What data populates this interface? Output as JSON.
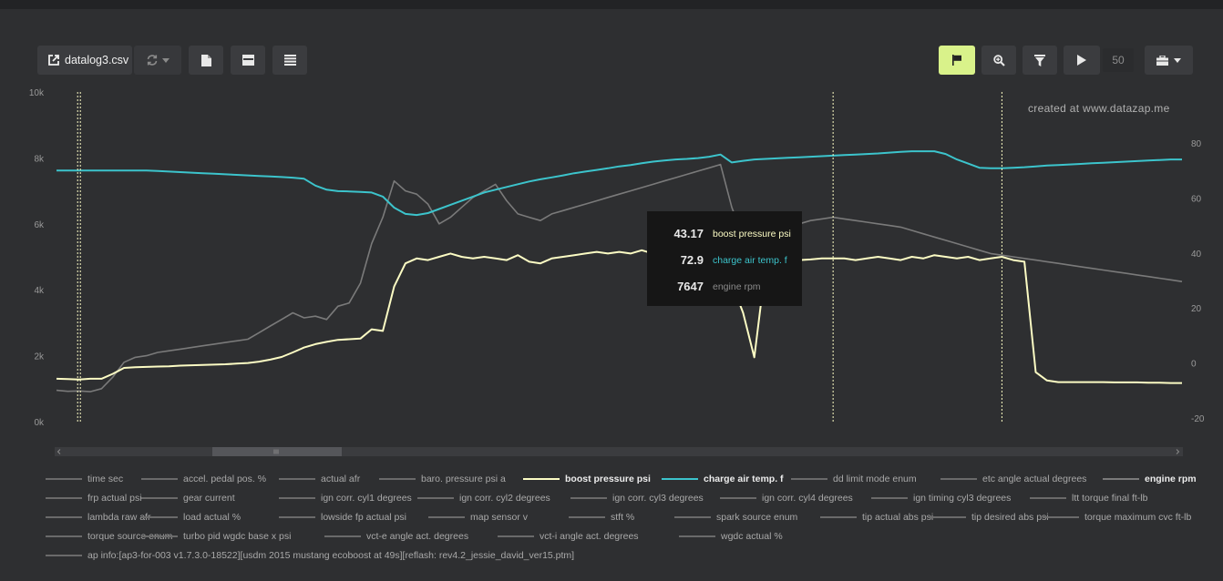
{
  "toolbar": {
    "file_label": "datalog3.csv",
    "speed_value": "50"
  },
  "watermark": "created at www.datazap.me",
  "tooltip": [
    {
      "value": "43.17",
      "name": "boost pressure psi",
      "color": "#fcfcc4"
    },
    {
      "value": "72.9",
      "name": "charge air temp. f",
      "color": "#3cc4cc"
    },
    {
      "value": "7647",
      "name": "engine rpm",
      "color": "#8a8a8a"
    }
  ],
  "legend": [
    [
      "time sec",
      "accel. pedal pos. %",
      "actual afr",
      "baro. pressure psi a",
      "boost pressure psi",
      "charge air temp. f",
      "dd limit mode enum",
      "etc angle actual degrees",
      "engine rpm"
    ],
    [
      "frp actual psi",
      "gear current",
      "ign corr. cyl1 degrees",
      "ign corr. cyl2 degrees",
      "ign corr. cyl3 degrees",
      "ign corr. cyl4 degrees",
      "ign timing cyl3 degrees",
      "ltt torque final ft-lb"
    ],
    [
      "lambda raw afr",
      "load actual %",
      "lowside fp actual psi",
      "map sensor v",
      "stft %",
      "spark source enum",
      "tip actual abs psi",
      "tip desired abs psi",
      "torque maximum cvc ft-lb"
    ],
    [
      "torque source enum",
      "turbo pid wgdc base x psi",
      "vct-e angle act. degrees",
      "vct-i angle act. degrees",
      "wgdc actual %"
    ],
    [
      "ap info:[ap3-for-003 v1.7.3.0-18522][usdm 2015 mustang ecoboost at 49s][reflash: rev4.2_jessie_david_ver15.ptm]"
    ]
  ],
  "legend_highlight": {
    "boost pressure psi": "#fcfcc4",
    "charge air temp. f": "#3cc4cc",
    "engine rpm": "#7a7a7a"
  },
  "chart_data": {
    "type": "line",
    "x": [
      0,
      1,
      2,
      3,
      4,
      5,
      6,
      7,
      8,
      9,
      10,
      11,
      12,
      13,
      14,
      15,
      16,
      17,
      18,
      19,
      20,
      21,
      22,
      23,
      24,
      25,
      26,
      27,
      28,
      29,
      30,
      31,
      32,
      33,
      34,
      35,
      36,
      37,
      38,
      39,
      40,
      41,
      42,
      43,
      44,
      45,
      46,
      47,
      48,
      49,
      50,
      51,
      52,
      53,
      54,
      55,
      56,
      57,
      58,
      59,
      60,
      61,
      62,
      63,
      64,
      65,
      66,
      67,
      68,
      69,
      70,
      71,
      72,
      73,
      74,
      75,
      76,
      77,
      78,
      79,
      80,
      81,
      82,
      83,
      84,
      85,
      86,
      87,
      88,
      89,
      90,
      91,
      92,
      93,
      94,
      95,
      96,
      97,
      98,
      99,
      100
    ],
    "y_left": {
      "ticks": [
        "0k",
        "2k",
        "4k",
        "6k",
        "8k",
        "10k"
      ],
      "range": [
        0,
        10000
      ]
    },
    "y_right": {
      "ticks": [
        "-20",
        "0",
        "20",
        "40",
        "60",
        "80"
      ],
      "range": [
        -22,
        90
      ]
    },
    "grid": false,
    "markers": [
      2,
      69,
      84
    ],
    "series": [
      {
        "name": "engine rpm",
        "axis": "left",
        "color": "#7a7a7a",
        "values": [
          950,
          920,
          930,
          910,
          1000,
          1350,
          1800,
          1950,
          2000,
          2100,
          2150,
          2200,
          2250,
          2300,
          2350,
          2400,
          2450,
          2500,
          2700,
          2900,
          3100,
          3300,
          3150,
          3200,
          3100,
          3500,
          3600,
          4200,
          5400,
          6200,
          7300,
          7000,
          6900,
          6600,
          6000,
          6200,
          6500,
          6800,
          7000,
          7200,
          6700,
          6300,
          6200,
          6100,
          6300,
          6400,
          6500,
          6600,
          6700,
          6800,
          6900,
          7000,
          7100,
          7200,
          7300,
          7400,
          7500,
          7600,
          7700,
          7800,
          6500,
          5600,
          5500,
          5600,
          5800,
          5900,
          6000,
          6100,
          6150,
          6200,
          6150,
          6100,
          6050,
          6000,
          5950,
          5900,
          5800,
          5700,
          5600,
          5500,
          5400,
          5300,
          5200,
          5100,
          5050,
          5000,
          4950,
          4900,
          4850,
          4800,
          4750,
          4700,
          4650,
          4600,
          4550,
          4500,
          4450,
          4400,
          4350,
          4300,
          4250
        ]
      },
      {
        "name": "boost pressure psi",
        "axis": "left",
        "color": "#fcfcc4",
        "values": [
          1300,
          1290,
          1280,
          1300,
          1300,
          1450,
          1630,
          1650,
          1660,
          1670,
          1680,
          1700,
          1710,
          1720,
          1730,
          1740,
          1760,
          1780,
          1820,
          1880,
          1960,
          2100,
          2250,
          2350,
          2420,
          2480,
          2500,
          2520,
          2800,
          2750,
          4100,
          4800,
          4950,
          4900,
          5000,
          5100,
          5000,
          4950,
          5000,
          4950,
          4900,
          5050,
          4850,
          4800,
          4950,
          5000,
          5050,
          5100,
          5150,
          5100,
          5150,
          5100,
          5200,
          5100,
          5150,
          5100,
          5200,
          5200,
          5050,
          4900,
          4200,
          3300,
          1950,
          4700,
          4850,
          4900,
          4900,
          4920,
          4950,
          4950,
          4950,
          4900,
          4950,
          5000,
          4950,
          4900,
          5000,
          4950,
          5050,
          5000,
          4950,
          5000,
          4900,
          4950,
          5000,
          4900,
          4850,
          1500,
          1250,
          1200,
          1200,
          1200,
          1200,
          1200,
          1190,
          1190,
          1190,
          1180,
          1180,
          1170,
          1170
        ]
      },
      {
        "name": "charge air temp. f",
        "axis": "right",
        "color": "#3cc4cc",
        "values": [
          70,
          70,
          70,
          70,
          70,
          70,
          70,
          70,
          70,
          69.8,
          69.6,
          69.4,
          69.2,
          69,
          68.8,
          68.6,
          68.4,
          68.2,
          68,
          67.8,
          67.6,
          67.4,
          67,
          64.5,
          63,
          62.5,
          62.4,
          62.2,
          62,
          60.5,
          56.5,
          54.2,
          53.8,
          54.5,
          56,
          57.5,
          59,
          60.5,
          62,
          63,
          64,
          65,
          66,
          66.8,
          67.5,
          68.2,
          69,
          69.6,
          70.2,
          70.8,
          71.5,
          72,
          72.6,
          73.2,
          73.6,
          74,
          74.2,
          74.5,
          75,
          75.8,
          72.9,
          73.5,
          74,
          74.2,
          74.4,
          74.6,
          74.8,
          75,
          75.2,
          75.4,
          75.6,
          75.8,
          76,
          76.2,
          76.5,
          76.8,
          77,
          77,
          77,
          76,
          74,
          72.5,
          71,
          70.8,
          70.8,
          71,
          71.2,
          71.5,
          71.8,
          72,
          72.2,
          72.4,
          72.6,
          72.8,
          73,
          73.2,
          73.4,
          73.6,
          73.8,
          74,
          74
        ]
      }
    ]
  }
}
